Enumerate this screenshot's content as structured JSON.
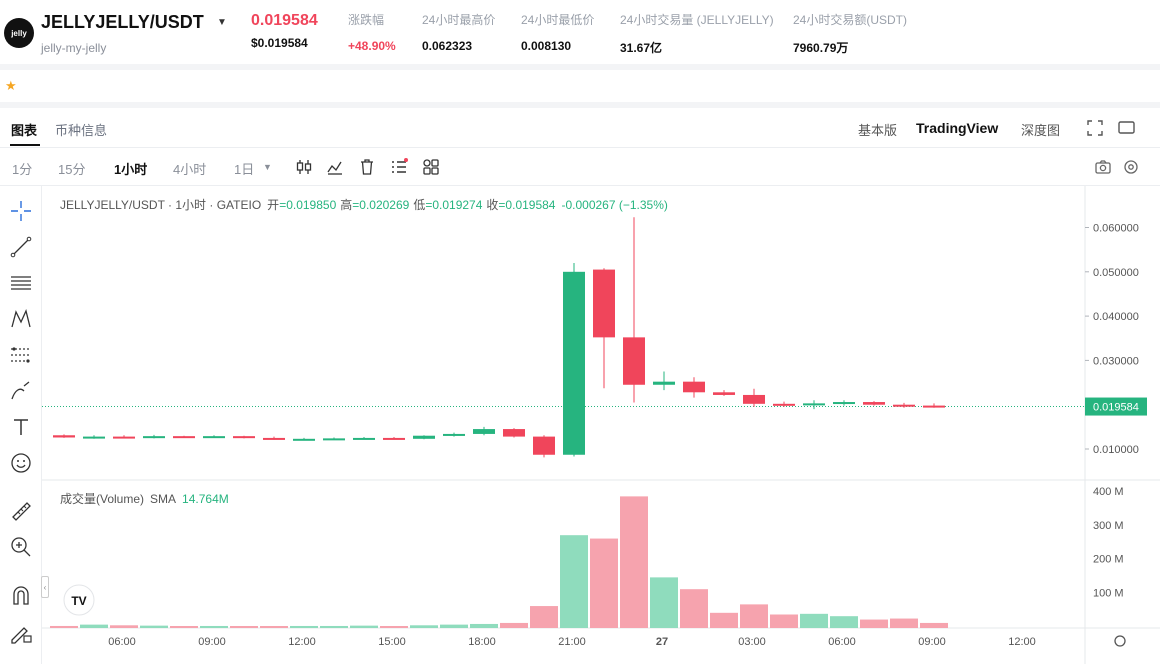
{
  "header": {
    "logo_text": "jelly",
    "pair": "JELLYJELLY/USDT",
    "subname": "jelly-my-jelly",
    "price": "0.019584",
    "price_usd": "$0.019584",
    "stats": [
      {
        "label": "涨跌幅",
        "value": "+48.90%",
        "up": true
      },
      {
        "label": "24小时最高价",
        "value": "0.062323"
      },
      {
        "label": "24小时最低价",
        "value": "0.008130"
      },
      {
        "label": "24小时交易量 (JELLYJELLY)",
        "value": "31.67亿"
      },
      {
        "label": "24小时交易额(USDT)",
        "value": "7960.79万"
      }
    ]
  },
  "tabs": {
    "chart": "图表",
    "info": "币种信息",
    "basic": "基本版",
    "tradingview": "TradingView",
    "depth": "深度图"
  },
  "timeframes": [
    "1分",
    "15分",
    "1小时",
    "4小时",
    "1日"
  ],
  "chart_legend": {
    "symbol": "JELLYJELLY/USDT · 1小时 · GATEIO",
    "open_label": "开",
    "open": "=0.019850",
    "high_label": "高",
    "high": "=0.020269",
    "low_label": "低",
    "low": "=0.019274",
    "close_label": "收",
    "close": "=0.019584",
    "change": "-0.000267 (−1.35%)"
  },
  "volume_legend": {
    "label": "成交量(Volume)",
    "sma": "SMA",
    "value": "14.764M"
  },
  "last_price_tag": "0.019584",
  "colors": {
    "up": "#26b47f",
    "down": "#f0455b",
    "up_vol": "#8fdcbd",
    "down_vol": "#f6a3ae"
  },
  "chart_data": {
    "type": "candlestick",
    "price_axis_ticks": [
      "0.010000",
      "0.020000",
      "0.030000",
      "0.040000",
      "0.050000",
      "0.060000"
    ],
    "price_ticks_values": [
      0.01,
      0.02,
      0.03,
      0.04,
      0.05,
      0.06
    ],
    "volume_axis_ticks": [
      "100 M",
      "200 M",
      "300 M",
      "400 M"
    ],
    "volume_ticks_values": [
      100,
      200,
      300,
      400
    ],
    "x_labels": [
      "06:00",
      "09:00",
      "12:00",
      "15:00",
      "18:00",
      "21:00",
      "27",
      "03:00",
      "06:00",
      "09:00",
      "12:00"
    ],
    "x_label_index": [
      2,
      5,
      8,
      11,
      14,
      17,
      20,
      23,
      26,
      29,
      32
    ],
    "candles": [
      {
        "o": 0.0131,
        "h": 0.0133,
        "l": 0.0125,
        "c": 0.0126,
        "v": 6
      },
      {
        "o": 0.0126,
        "h": 0.0131,
        "l": 0.0123,
        "c": 0.0128,
        "v": 10
      },
      {
        "o": 0.0128,
        "h": 0.0131,
        "l": 0.0124,
        "c": 0.0127,
        "v": 8
      },
      {
        "o": 0.0127,
        "h": 0.0132,
        "l": 0.0124,
        "c": 0.0129,
        "v": 7
      },
      {
        "o": 0.0129,
        "h": 0.013,
        "l": 0.0126,
        "c": 0.0128,
        "v": 5
      },
      {
        "o": 0.0128,
        "h": 0.0131,
        "l": 0.0125,
        "c": 0.0129,
        "v": 6
      },
      {
        "o": 0.0129,
        "h": 0.013,
        "l": 0.0124,
        "c": 0.0125,
        "v": 5
      },
      {
        "o": 0.0125,
        "h": 0.0128,
        "l": 0.0121,
        "c": 0.0122,
        "v": 5
      },
      {
        "o": 0.0122,
        "h": 0.0125,
        "l": 0.012,
        "c": 0.0123,
        "v": 6
      },
      {
        "o": 0.0123,
        "h": 0.0126,
        "l": 0.0121,
        "c": 0.0124,
        "v": 6
      },
      {
        "o": 0.0124,
        "h": 0.0127,
        "l": 0.0122,
        "c": 0.0125,
        "v": 7
      },
      {
        "o": 0.0125,
        "h": 0.0127,
        "l": 0.0122,
        "c": 0.0123,
        "v": 5
      },
      {
        "o": 0.0123,
        "h": 0.0131,
        "l": 0.0122,
        "c": 0.013,
        "v": 8
      },
      {
        "o": 0.013,
        "h": 0.0137,
        "l": 0.0128,
        "c": 0.0134,
        "v": 10
      },
      {
        "o": 0.0134,
        "h": 0.015,
        "l": 0.0131,
        "c": 0.0145,
        "v": 12
      },
      {
        "o": 0.0145,
        "h": 0.0147,
        "l": 0.0126,
        "c": 0.0128,
        "v": 15
      },
      {
        "o": 0.0128,
        "h": 0.0131,
        "l": 0.0081,
        "c": 0.0087,
        "v": 65
      },
      {
        "o": 0.0087,
        "h": 0.052,
        "l": 0.0083,
        "c": 0.05,
        "v": 275
      },
      {
        "o": 0.0505,
        "h": 0.0508,
        "l": 0.0237,
        "c": 0.0352,
        "v": 265
      },
      {
        "o": 0.0352,
        "h": 0.0623,
        "l": 0.0205,
        "c": 0.0245,
        "v": 390
      },
      {
        "o": 0.0245,
        "h": 0.0275,
        "l": 0.0233,
        "c": 0.0252,
        "v": 150
      },
      {
        "o": 0.0252,
        "h": 0.0262,
        "l": 0.0216,
        "c": 0.0228,
        "v": 115
      },
      {
        "o": 0.0228,
        "h": 0.0233,
        "l": 0.022,
        "c": 0.0222,
        "v": 45
      },
      {
        "o": 0.0222,
        "h": 0.0236,
        "l": 0.0195,
        "c": 0.0202,
        "v": 70
      },
      {
        "o": 0.0202,
        "h": 0.0207,
        "l": 0.0195,
        "c": 0.02,
        "v": 40
      },
      {
        "o": 0.02,
        "h": 0.021,
        "l": 0.019,
        "c": 0.0203,
        "v": 42
      },
      {
        "o": 0.0203,
        "h": 0.021,
        "l": 0.0198,
        "c": 0.0206,
        "v": 35
      },
      {
        "o": 0.0206,
        "h": 0.0208,
        "l": 0.0198,
        "c": 0.02,
        "v": 25
      },
      {
        "o": 0.02,
        "h": 0.0204,
        "l": 0.0193,
        "c": 0.0198,
        "v": 28
      },
      {
        "o": 0.0198,
        "h": 0.0203,
        "l": 0.0193,
        "c": 0.0196,
        "v": 15
      }
    ]
  }
}
